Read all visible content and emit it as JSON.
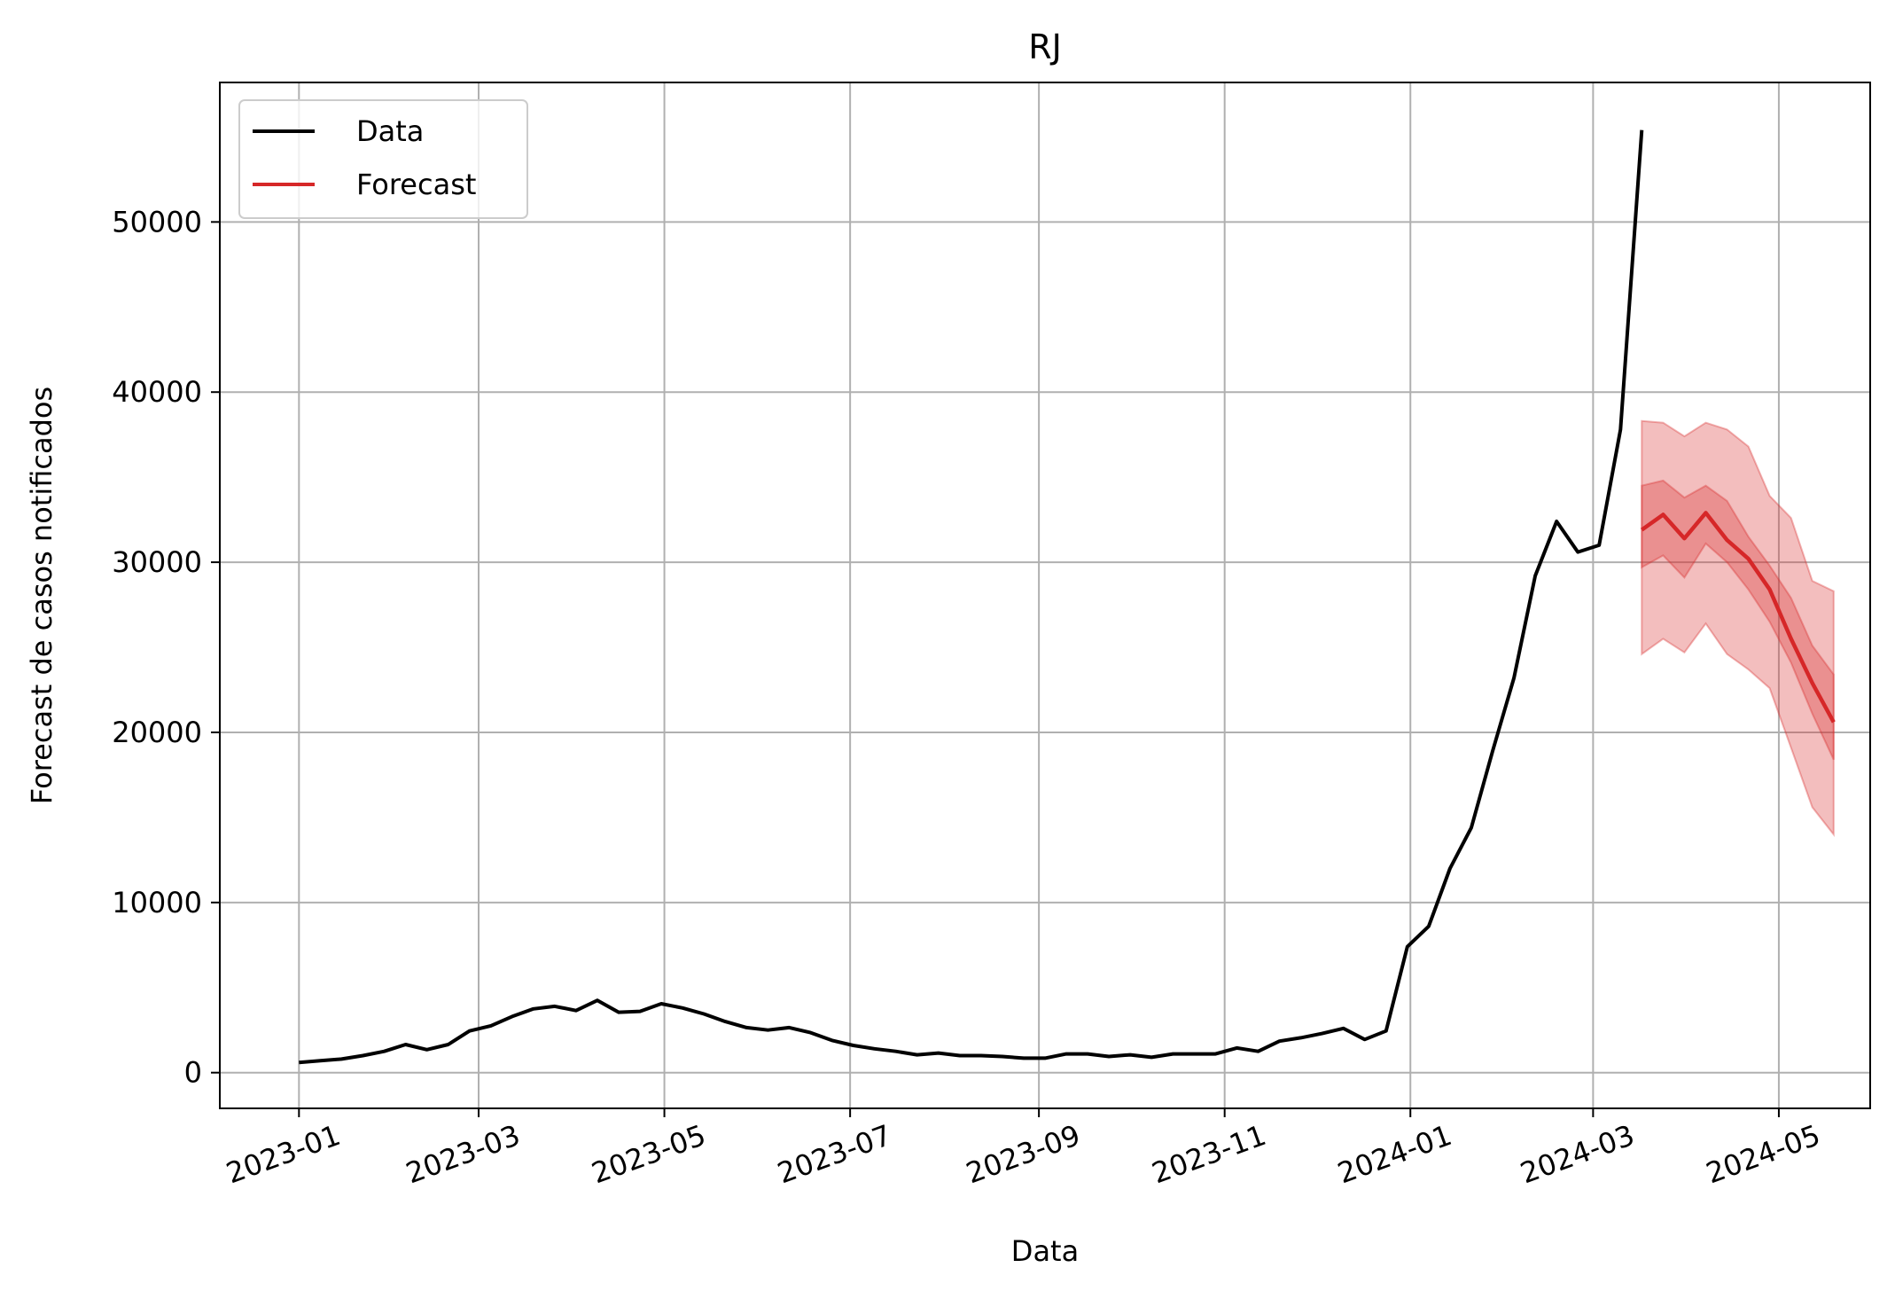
{
  "chart_data": {
    "type": "line",
    "title": "RJ",
    "xlabel": "Data",
    "ylabel": "Forecast de casos notificados",
    "x_axis_type": "date",
    "xlim": [
      "2022-12-06",
      "2024-05-31"
    ],
    "ylim": [
      -2100,
      58200
    ],
    "x_ticks": [
      "2023-01-01",
      "2023-03-01",
      "2023-05-01",
      "2023-07-01",
      "2023-09-01",
      "2023-11-01",
      "2024-01-01",
      "2024-03-01",
      "2024-05-01"
    ],
    "x_tick_labels": [
      "2023-01",
      "2023-03",
      "2023-05",
      "2023-07",
      "2023-09",
      "2023-11",
      "2024-01",
      "2024-03",
      "2024-05"
    ],
    "y_ticks": [
      0,
      10000,
      20000,
      30000,
      40000,
      50000
    ],
    "y_tick_labels": [
      "0",
      "10000",
      "20000",
      "30000",
      "40000",
      "50000"
    ],
    "grid": true,
    "legend_position": "top-left",
    "colors": {
      "data_line": "#000000",
      "forecast_line": "#d62728",
      "interval_fill": "#d62728",
      "grid": "#b0b0b0"
    },
    "series": [
      {
        "name": "Data",
        "x": [
          "2023-01-01",
          "2023-01-08",
          "2023-01-15",
          "2023-01-22",
          "2023-01-29",
          "2023-02-05",
          "2023-02-12",
          "2023-02-19",
          "2023-02-26",
          "2023-03-05",
          "2023-03-12",
          "2023-03-19",
          "2023-03-26",
          "2023-04-02",
          "2023-04-09",
          "2023-04-16",
          "2023-04-23",
          "2023-04-30",
          "2023-05-07",
          "2023-05-14",
          "2023-05-21",
          "2023-05-28",
          "2023-06-04",
          "2023-06-11",
          "2023-06-18",
          "2023-06-25",
          "2023-07-02",
          "2023-07-09",
          "2023-07-16",
          "2023-07-23",
          "2023-07-30",
          "2023-08-06",
          "2023-08-13",
          "2023-08-20",
          "2023-08-27",
          "2023-09-03",
          "2023-09-10",
          "2023-09-17",
          "2023-09-24",
          "2023-10-01",
          "2023-10-08",
          "2023-10-15",
          "2023-10-22",
          "2023-10-29",
          "2023-11-05",
          "2023-11-12",
          "2023-11-19",
          "2023-11-26",
          "2023-12-03",
          "2023-12-10",
          "2023-12-17",
          "2023-12-24",
          "2023-12-31",
          "2024-01-07",
          "2024-01-14",
          "2024-01-21",
          "2024-01-28",
          "2024-02-04",
          "2024-02-11",
          "2024-02-18",
          "2024-02-25",
          "2024-03-03",
          "2024-03-10",
          "2024-03-17"
        ],
        "values": [
          600,
          700,
          800,
          1000,
          1250,
          1650,
          1350,
          1650,
          2450,
          2750,
          3300,
          3750,
          3900,
          3650,
          4250,
          3550,
          3600,
          4050,
          3800,
          3450,
          3000,
          2650,
          2500,
          2650,
          2350,
          1900,
          1600,
          1400,
          1250,
          1050,
          1150,
          1000,
          1000,
          950,
          850,
          850,
          1100,
          1100,
          950,
          1050,
          900,
          1100,
          1100,
          1100,
          1450,
          1250,
          1850,
          2050,
          2300,
          2600,
          1950,
          2450,
          7400,
          8600,
          12000,
          14400,
          18900,
          23200,
          29200,
          32400,
          30600,
          31000,
          37800,
          55400
        ]
      },
      {
        "name": "Forecast",
        "x": [
          "2024-03-17",
          "2024-03-24",
          "2024-03-31",
          "2024-04-07",
          "2024-04-14",
          "2024-04-21",
          "2024-04-28",
          "2024-05-05",
          "2024-05-12",
          "2024-05-19"
        ],
        "values": [
          31900,
          32800,
          31400,
          32900,
          31300,
          30200,
          28400,
          25500,
          22900,
          20600
        ],
        "inner_lower": [
          29700,
          30400,
          29100,
          31100,
          30000,
          28400,
          26500,
          24100,
          21100,
          18400
        ],
        "inner_upper": [
          34500,
          34800,
          33800,
          34500,
          33600,
          31500,
          29800,
          27900,
          25100,
          23400
        ],
        "outer_lower": [
          24600,
          25500,
          24700,
          26400,
          24600,
          23700,
          22600,
          19100,
          15600,
          14000
        ],
        "outer_upper": [
          38300,
          38200,
          37400,
          38200,
          37800,
          36800,
          33900,
          32600,
          28900,
          28300
        ]
      }
    ]
  }
}
